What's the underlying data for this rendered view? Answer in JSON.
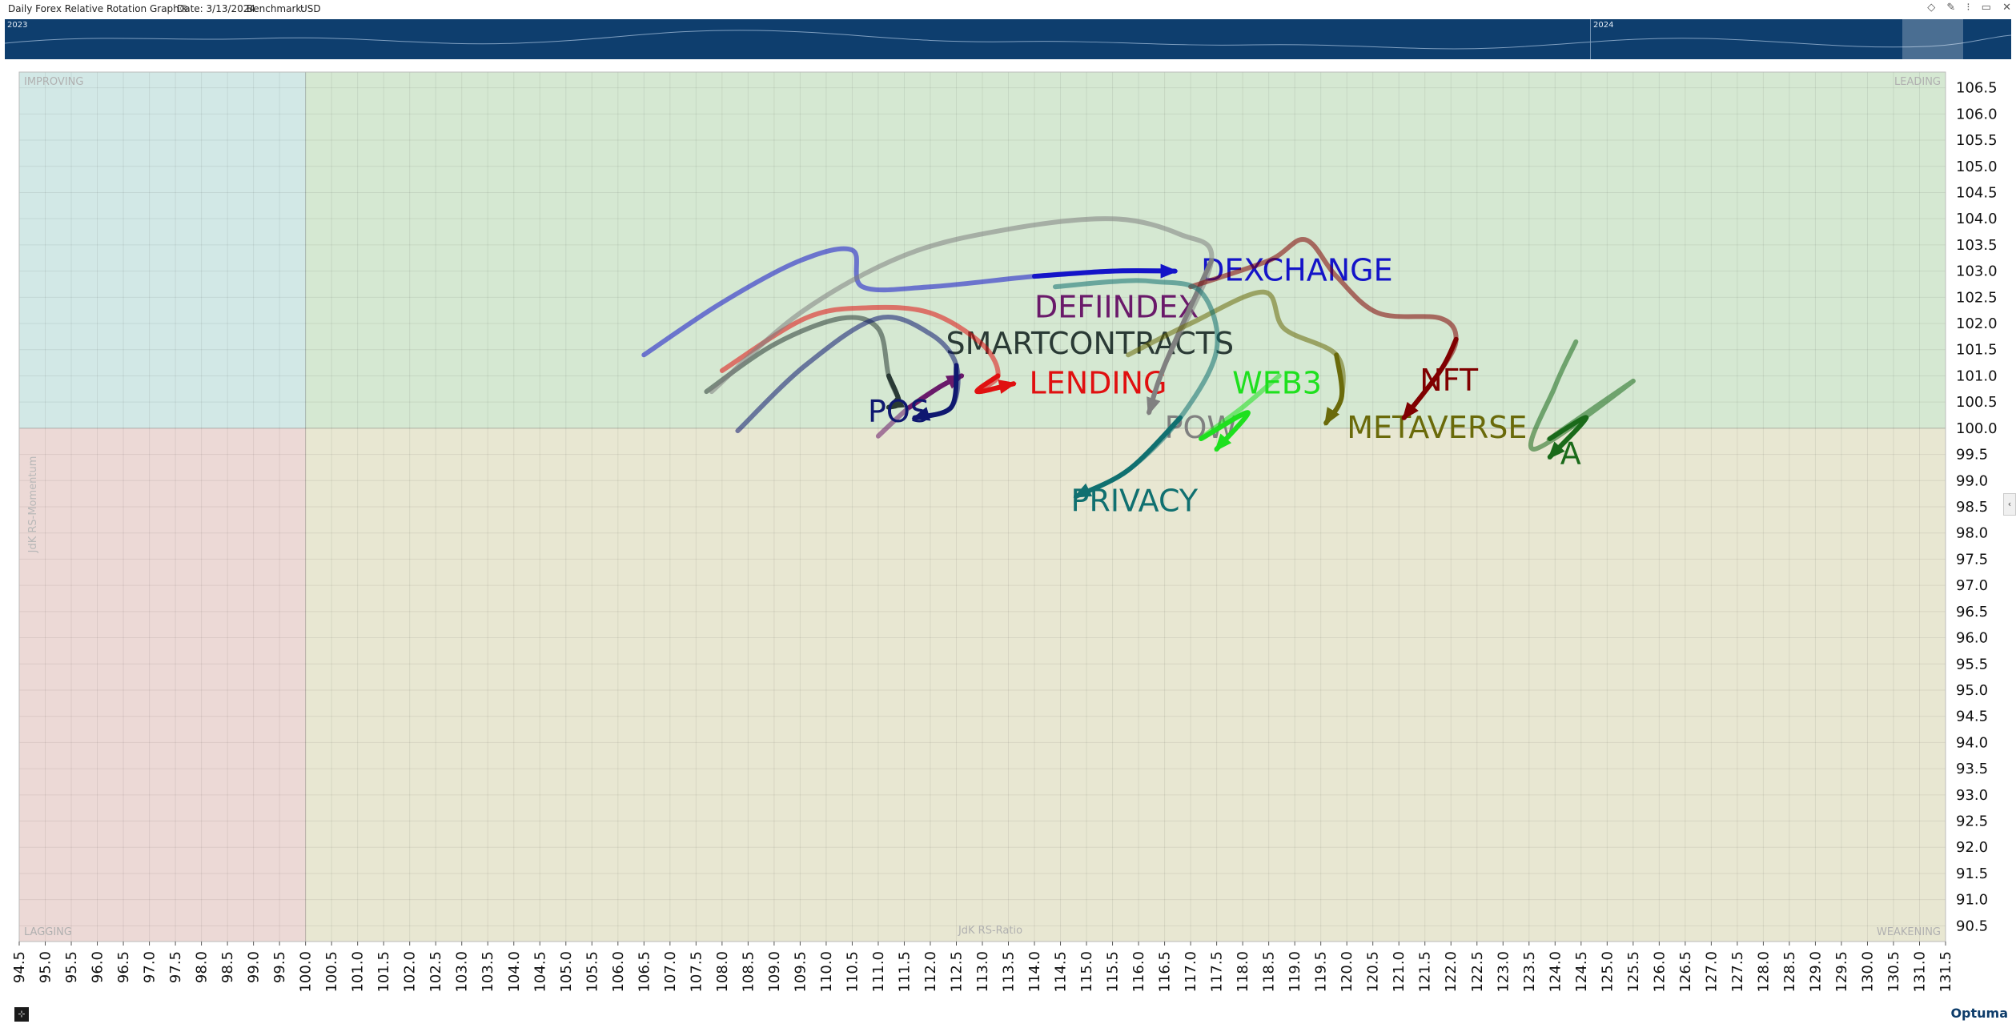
{
  "window": {
    "title": "Daily Forex Relative Rotation Graph®",
    "date_label": "Date: 3/13/2024",
    "benchmark_label": "Benchmark:",
    "benchmark_value": "USD",
    "controls": [
      "◇",
      "✎",
      "⁝",
      "▭",
      "✕"
    ]
  },
  "overview": {
    "years": [
      "2023",
      "2024"
    ]
  },
  "footer": {
    "brand": "Optuma"
  },
  "chart_data": {
    "type": "scatter",
    "subtype": "relative-rotation-graph",
    "title": "",
    "xlabel": "JdK RS-Ratio",
    "ylabel": "JdK RS-Momentum",
    "xlim": [
      94.5,
      131.5
    ],
    "ylim": [
      90.2,
      106.8
    ],
    "x_ticks": [
      "94.5",
      "95.0",
      "95.5",
      "96.0",
      "96.5",
      "97.0",
      "97.5",
      "98.0",
      "98.5",
      "99.0",
      "99.5",
      "100.0",
      "100.5",
      "101.0",
      "101.5",
      "102.0",
      "102.5",
      "103.0",
      "103.5",
      "104.0",
      "104.5",
      "105.0",
      "105.5",
      "106.0",
      "106.5",
      "107.0",
      "107.5",
      "108.0",
      "108.5",
      "109.0",
      "109.5",
      "110.0",
      "110.5",
      "111.0",
      "111.5",
      "112.0",
      "112.5",
      "113.0",
      "113.5",
      "114.0",
      "114.5",
      "115.0",
      "115.5",
      "116.0",
      "116.5",
      "117.0",
      "117.5",
      "118.0",
      "118.5",
      "119.0",
      "119.5",
      "120.0",
      "120.5",
      "121.0",
      "121.5",
      "122.0",
      "122.5",
      "123.0",
      "123.5",
      "124.0",
      "124.5",
      "125.0",
      "125.5",
      "126.0",
      "126.5",
      "127.0",
      "127.5",
      "128.0",
      "128.5",
      "129.0",
      "129.5",
      "130.0",
      "130.5",
      "131.0",
      "131.5"
    ],
    "y_ticks": [
      "106.5",
      "106.0",
      "105.5",
      "105.0",
      "104.5",
      "104.0",
      "103.5",
      "103.0",
      "102.5",
      "102.0",
      "101.5",
      "101.0",
      "100.5",
      "100.0",
      "99.5",
      "99.0",
      "98.5",
      "98.0",
      "97.5",
      "97.0",
      "96.5",
      "96.0",
      "95.5",
      "95.0",
      "94.5",
      "94.0",
      "93.5",
      "93.0",
      "92.5",
      "92.0",
      "91.5",
      "91.0",
      "90.5"
    ],
    "quadrants": [
      {
        "name": "IMPROVING",
        "color": "#d2e8e6"
      },
      {
        "name": "LEADING",
        "color": "#d5e8d2"
      },
      {
        "name": "LAGGING",
        "color": "#ecd9d6"
      },
      {
        "name": "WEAKENING",
        "color": "#e8e7d2"
      }
    ],
    "grid": true,
    "series": [
      {
        "name": "DEXCHANGE",
        "color": "#1414c8",
        "label_at": [
          117.2,
          103.0
        ],
        "x": [
          106.5,
          108.0,
          109.5,
          110.5,
          110.7,
          112.0,
          114.0,
          115.5,
          116.7
        ],
        "y": [
          101.4,
          102.4,
          103.2,
          103.4,
          102.7,
          102.7,
          102.9,
          103.0,
          103.0
        ]
      },
      {
        "name": "DEFIINDEX",
        "color": "#6a1a6a",
        "label_at": [
          114.0,
          102.3
        ],
        "x": [
          111.0,
          111.6,
          112.2,
          112.6
        ],
        "y": [
          99.85,
          100.4,
          100.8,
          101.0
        ]
      },
      {
        "name": "SMARTCONTRACTS",
        "color": "#2a3a35",
        "label_at": [
          112.3,
          101.6
        ],
        "x": [
          107.7,
          109.0,
          110.3,
          111.0,
          111.2,
          111.4,
          111.2
        ],
        "y": [
          100.7,
          101.6,
          102.1,
          101.9,
          101.0,
          100.5,
          100.4
        ]
      },
      {
        "name": "LENDING",
        "color": "#e01010",
        "label_at": [
          113.9,
          100.85
        ],
        "x": [
          108.0,
          109.6,
          110.8,
          112.0,
          113.0,
          113.3,
          112.9,
          113.6
        ],
        "y": [
          101.1,
          102.1,
          102.3,
          102.2,
          101.6,
          101.0,
          100.7,
          100.85
        ]
      },
      {
        "name": "POS",
        "color": "#0f1870",
        "label_at": [
          110.8,
          100.3
        ],
        "x": [
          108.3,
          109.6,
          111.0,
          112.0,
          112.5,
          112.4,
          111.7
        ],
        "y": [
          99.95,
          101.2,
          102.1,
          101.8,
          101.2,
          100.4,
          100.2
        ]
      },
      {
        "name": "POW",
        "color": "#808080",
        "label_at": [
          116.5,
          100.0
        ],
        "x": [
          107.8,
          109.5,
          111.5,
          113.5,
          115.5,
          116.8,
          117.4,
          116.5,
          116.2
        ],
        "y": [
          100.7,
          102.2,
          103.3,
          103.8,
          104.0,
          103.7,
          103.2,
          101.2,
          100.3
        ]
      },
      {
        "name": "WEB3",
        "color": "#1ee01e",
        "label_at": [
          117.8,
          100.85
        ],
        "x": [
          118.7,
          118.0,
          117.2,
          118.1,
          117.5
        ],
        "y": [
          101.0,
          100.4,
          99.8,
          100.3,
          99.6
        ]
      },
      {
        "name": "METAVERSE",
        "color": "#6a6a0a",
        "label_at": [
          120.0,
          100.0
        ],
        "x": [
          115.8,
          117.0,
          118.4,
          118.8,
          119.8,
          119.9,
          119.6
        ],
        "y": [
          101.4,
          102.0,
          102.6,
          101.9,
          101.4,
          100.6,
          100.1
        ]
      },
      {
        "name": "NFT",
        "color": "#800000",
        "label_at": [
          121.4,
          100.9
        ],
        "x": [
          117.0,
          118.5,
          119.2,
          119.8,
          120.6,
          121.8,
          122.1,
          121.8,
          121.1
        ],
        "y": [
          102.7,
          103.2,
          103.6,
          102.9,
          102.2,
          102.1,
          101.7,
          101.1,
          100.2
        ]
      },
      {
        "name": "PRIVACY",
        "color": "#107070",
        "label_at": [
          114.7,
          98.6
        ],
        "x": [
          114.4,
          115.5,
          116.3,
          117.2,
          117.5,
          116.8,
          115.8,
          114.8
        ],
        "y": [
          102.7,
          102.8,
          102.8,
          102.6,
          101.5,
          100.2,
          99.2,
          98.7
        ]
      },
      {
        "name": "A",
        "color": "#1a6a1a",
        "label_at": [
          124.1,
          99.5
        ],
        "x": [
          124.4,
          124.0,
          123.6,
          125.5,
          123.9,
          124.6,
          123.9
        ],
        "y": [
          101.65,
          100.8,
          99.6,
          100.9,
          99.8,
          100.2,
          99.45
        ]
      }
    ]
  }
}
